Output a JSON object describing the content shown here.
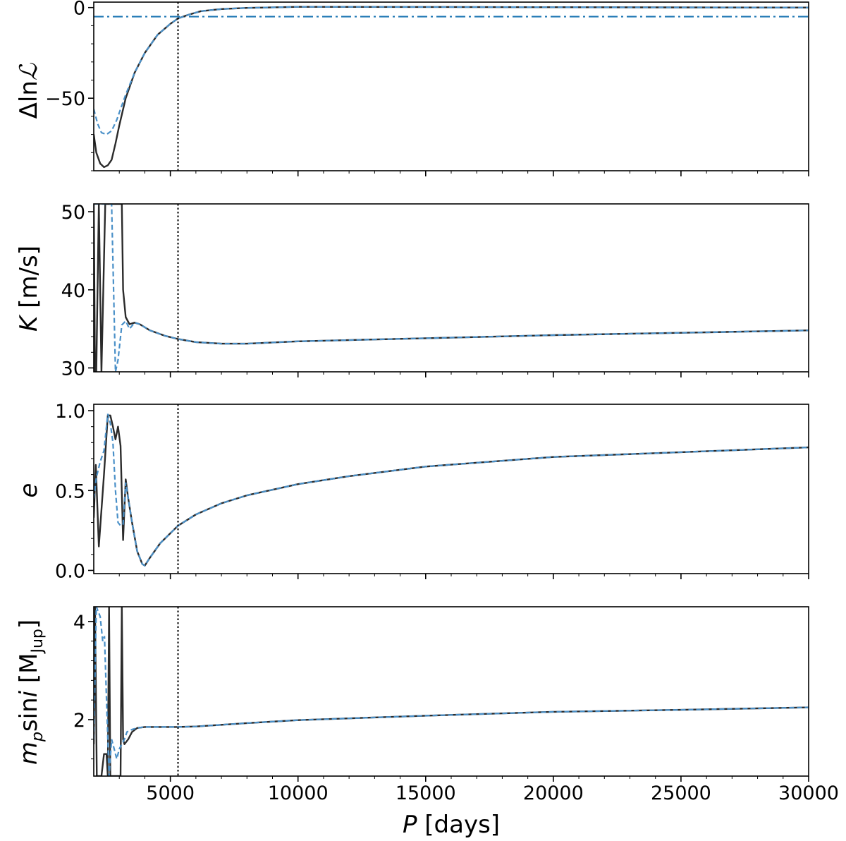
{
  "chart_data": [
    {
      "type": "line",
      "ylabel_parts": [
        "Δln",
        "ℒ"
      ],
      "xlim": [
        2000,
        30000
      ],
      "ylim": [
        -90,
        3
      ],
      "yticks": [
        {
          "value": 0,
          "label": "0"
        },
        {
          "value": -50,
          "label": "−50"
        }
      ],
      "vline_x": 5300,
      "hline_y": -5,
      "series": [
        {
          "style": "solid-black",
          "points": [
            [
              2000,
              -70
            ],
            [
              2100,
              -80
            ],
            [
              2250,
              -86
            ],
            [
              2400,
              -88
            ],
            [
              2550,
              -87
            ],
            [
              2700,
              -84
            ],
            [
              2850,
              -75
            ],
            [
              3000,
              -65
            ],
            [
              3250,
              -50
            ],
            [
              3600,
              -36
            ],
            [
              4000,
              -25
            ],
            [
              4500,
              -15
            ],
            [
              5000,
              -9
            ],
            [
              5300,
              -6
            ],
            [
              5700,
              -4
            ],
            [
              6200,
              -2
            ],
            [
              7000,
              -0.8
            ],
            [
              8000,
              -0.2
            ],
            [
              10000,
              0.4
            ],
            [
              15000,
              0.3
            ],
            [
              20000,
              0.2
            ],
            [
              25000,
              0.1
            ],
            [
              30000,
              0
            ]
          ]
        },
        {
          "style": "dashed-blue",
          "points": [
            [
              2000,
              -56
            ],
            [
              2150,
              -64
            ],
            [
              2300,
              -69
            ],
            [
              2500,
              -70
            ],
            [
              2700,
              -68
            ],
            [
              2900,
              -62
            ],
            [
              3050,
              -56
            ],
            [
              3250,
              -48
            ],
            [
              3600,
              -36
            ],
            [
              4000,
              -25
            ],
            [
              4500,
              -15
            ],
            [
              5000,
              -9
            ],
            [
              5300,
              -6
            ],
            [
              5700,
              -4
            ],
            [
              6200,
              -2
            ],
            [
              7000,
              -0.8
            ],
            [
              8000,
              -0.2
            ],
            [
              10000,
              0.4
            ],
            [
              15000,
              0.3
            ],
            [
              20000,
              0.2
            ],
            [
              25000,
              0.1
            ],
            [
              30000,
              0
            ]
          ]
        }
      ]
    },
    {
      "type": "line",
      "ylabel_parts": [
        "K",
        " [m/s]"
      ],
      "xlim": [
        2000,
        30000
      ],
      "ylim": [
        29.5,
        51
      ],
      "yticks": [
        {
          "value": 30,
          "label": "30"
        },
        {
          "value": 40,
          "label": "40"
        },
        {
          "value": 50,
          "label": "50"
        }
      ],
      "vline_x": 5300,
      "series": [
        {
          "style": "solid-black",
          "points": [
            [
              2000,
              51
            ],
            [
              2050,
              29.5
            ],
            [
              2100,
              29.5
            ],
            [
              2200,
              51
            ],
            [
              2300,
              29.5
            ],
            [
              2450,
              51
            ],
            [
              3100,
              51
            ],
            [
              3150,
              40
            ],
            [
              3250,
              36.5
            ],
            [
              3400,
              35.6
            ],
            [
              3600,
              35.8
            ],
            [
              3800,
              35.6
            ],
            [
              4200,
              34.8
            ],
            [
              4800,
              34.1
            ],
            [
              5300,
              33.7
            ],
            [
              6000,
              33.3
            ],
            [
              7000,
              33.1
            ],
            [
              8000,
              33.1
            ],
            [
              10000,
              33.4
            ],
            [
              15000,
              33.8
            ],
            [
              20000,
              34.2
            ],
            [
              25000,
              34.5
            ],
            [
              30000,
              34.8
            ]
          ]
        },
        {
          "style": "dashed-blue",
          "points": [
            [
              2000,
              51
            ],
            [
              2700,
              51
            ],
            [
              2850,
              29.5
            ],
            [
              2950,
              31
            ],
            [
              3100,
              35.5
            ],
            [
              3250,
              36
            ],
            [
              3400,
              35
            ],
            [
              3600,
              35.8
            ],
            [
              3800,
              35.6
            ],
            [
              4200,
              34.8
            ],
            [
              4800,
              34.1
            ],
            [
              5300,
              33.7
            ],
            [
              6000,
              33.3
            ],
            [
              7000,
              33.1
            ],
            [
              8000,
              33.1
            ],
            [
              10000,
              33.4
            ],
            [
              15000,
              33.8
            ],
            [
              20000,
              34.2
            ],
            [
              25000,
              34.5
            ],
            [
              30000,
              34.8
            ]
          ]
        }
      ]
    },
    {
      "type": "line",
      "ylabel_parts": [
        "e",
        ""
      ],
      "xlim": [
        2000,
        30000
      ],
      "ylim": [
        -0.02,
        1.04
      ],
      "yticks": [
        {
          "value": 0.0,
          "label": "0.0"
        },
        {
          "value": 0.5,
          "label": "0.5"
        },
        {
          "value": 1.0,
          "label": "1.0"
        }
      ],
      "vline_x": 5300,
      "series": [
        {
          "style": "solid-black",
          "points": [
            [
              2000,
              0.33
            ],
            [
              2080,
              0.66
            ],
            [
              2200,
              0.15
            ],
            [
              2400,
              0.6
            ],
            [
              2550,
              0.97
            ],
            [
              2650,
              0.97
            ],
            [
              2750,
              0.9
            ],
            [
              2850,
              0.82
            ],
            [
              2950,
              0.9
            ],
            [
              3050,
              0.78
            ],
            [
              3150,
              0.19
            ],
            [
              3250,
              0.57
            ],
            [
              3350,
              0.45
            ],
            [
              3500,
              0.3
            ],
            [
              3700,
              0.12
            ],
            [
              3900,
              0.04
            ],
            [
              4000,
              0.03
            ],
            [
              4200,
              0.08
            ],
            [
              4600,
              0.17
            ],
            [
              5300,
              0.28
            ],
            [
              6000,
              0.35
            ],
            [
              7000,
              0.42
            ],
            [
              8000,
              0.47
            ],
            [
              10000,
              0.54
            ],
            [
              12000,
              0.59
            ],
            [
              15000,
              0.65
            ],
            [
              20000,
              0.71
            ],
            [
              25000,
              0.74
            ],
            [
              30000,
              0.77
            ]
          ]
        },
        {
          "style": "dashed-blue",
          "points": [
            [
              2000,
              0.45
            ],
            [
              2100,
              0.58
            ],
            [
              2250,
              0.68
            ],
            [
              2400,
              0.75
            ],
            [
              2550,
              0.98
            ],
            [
              2650,
              0.92
            ],
            [
              2750,
              0.8
            ],
            [
              2850,
              0.5
            ],
            [
              2950,
              0.3
            ],
            [
              3050,
              0.28
            ],
            [
              3150,
              0.29
            ],
            [
              3250,
              0.55
            ],
            [
              3350,
              0.45
            ],
            [
              3500,
              0.3
            ],
            [
              3700,
              0.12
            ],
            [
              3900,
              0.04
            ],
            [
              4000,
              0.03
            ],
            [
              4200,
              0.08
            ],
            [
              4600,
              0.17
            ],
            [
              5300,
              0.28
            ],
            [
              6000,
              0.35
            ],
            [
              7000,
              0.42
            ],
            [
              8000,
              0.47
            ],
            [
              10000,
              0.54
            ],
            [
              12000,
              0.59
            ],
            [
              15000,
              0.65
            ],
            [
              20000,
              0.71
            ],
            [
              25000,
              0.74
            ],
            [
              30000,
              0.77
            ]
          ]
        }
      ]
    },
    {
      "type": "line",
      "ylabel_parts": [
        "m",
        "p",
        "sin",
        "i",
        " [M",
        "Jup",
        "]"
      ],
      "xlim": [
        2000,
        30000
      ],
      "ylim": [
        0.85,
        4.3
      ],
      "yticks": [
        {
          "value": 2,
          "label": "2"
        },
        {
          "value": 4,
          "label": "4"
        }
      ],
      "vline_x": 5300,
      "series": [
        {
          "style": "solid-black",
          "points": [
            [
              2000,
              1.5
            ],
            [
              2050,
              4.3
            ],
            [
              2120,
              0.85
            ],
            [
              2300,
              0.85
            ],
            [
              2400,
              1.3
            ],
            [
              2500,
              1.3
            ],
            [
              2550,
              0.85
            ],
            [
              2600,
              4.3
            ],
            [
              2650,
              0.85
            ],
            [
              3050,
              0.85
            ],
            [
              3100,
              4.3
            ],
            [
              3150,
              1.6
            ],
            [
              3200,
              1.5
            ],
            [
              3350,
              1.6
            ],
            [
              3500,
              1.75
            ],
            [
              3700,
              1.83
            ],
            [
              4000,
              1.85
            ],
            [
              5300,
              1.85
            ],
            [
              6000,
              1.86
            ],
            [
              8000,
              1.93
            ],
            [
              10000,
              1.99
            ],
            [
              15000,
              2.08
            ],
            [
              20000,
              2.16
            ],
            [
              25000,
              2.2
            ],
            [
              30000,
              2.25
            ]
          ]
        },
        {
          "style": "dashed-blue",
          "points": [
            [
              2000,
              1.6
            ],
            [
              2100,
              4.3
            ],
            [
              2250,
              4.1
            ],
            [
              2350,
              3.6
            ],
            [
              2420,
              3.7
            ],
            [
              2500,
              2.4
            ],
            [
              2600,
              0.85
            ],
            [
              2700,
              1.6
            ],
            [
              2800,
              1.4
            ],
            [
              2900,
              1.2
            ],
            [
              3000,
              1.4
            ],
            [
              3100,
              1.5
            ],
            [
              3200,
              1.6
            ],
            [
              3300,
              1.75
            ],
            [
              3500,
              1.8
            ],
            [
              3700,
              1.83
            ],
            [
              4000,
              1.85
            ],
            [
              5300,
              1.85
            ],
            [
              6000,
              1.86
            ],
            [
              8000,
              1.93
            ],
            [
              10000,
              1.99
            ],
            [
              15000,
              2.08
            ],
            [
              20000,
              2.16
            ],
            [
              25000,
              2.2
            ],
            [
              30000,
              2.25
            ]
          ]
        }
      ]
    }
  ],
  "x_axis": {
    "label_parts": [
      "P",
      " [days]"
    ],
    "ticks": [
      {
        "value": 5000,
        "label": "5000"
      },
      {
        "value": 10000,
        "label": "10000"
      },
      {
        "value": 15000,
        "label": "15000"
      },
      {
        "value": 20000,
        "label": "20000"
      },
      {
        "value": 25000,
        "label": "25000"
      },
      {
        "value": 30000,
        "label": "30000"
      }
    ]
  },
  "colors": {
    "black_line": "#2b2b2b",
    "blue_line": "#4a90c8",
    "hline": "#1f77b4",
    "frame": "#000000"
  }
}
